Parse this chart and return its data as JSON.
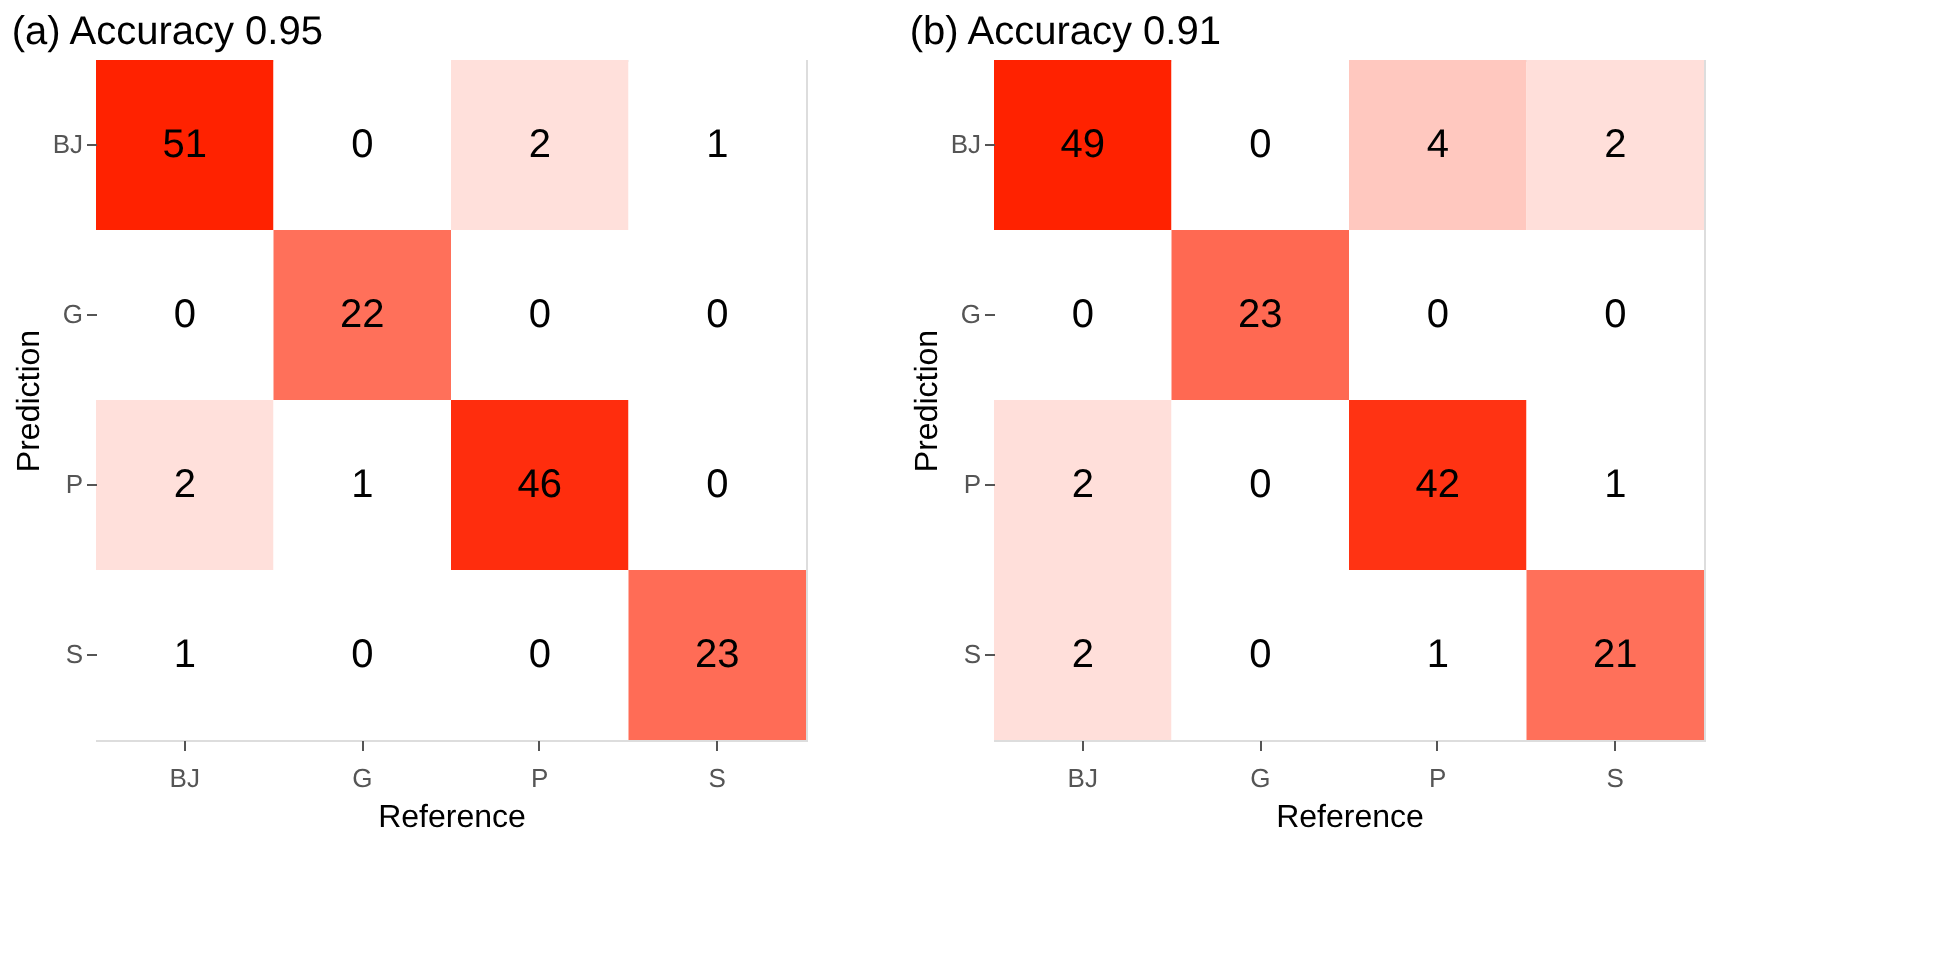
{
  "chart_data": [
    {
      "type": "heatmap",
      "title": "(a) Accuracy 0.95",
      "xlabel": "Reference",
      "ylabel": "Prediction",
      "categories": [
        "BJ",
        "G",
        "P",
        "S"
      ],
      "y_categories": [
        "BJ",
        "G",
        "P",
        "S"
      ],
      "data_labels": true,
      "cells": [
        [
          51,
          0,
          2,
          1
        ],
        [
          0,
          22,
          0,
          0
        ],
        [
          2,
          1,
          46,
          0
        ],
        [
          1,
          0,
          0,
          23
        ]
      ]
    },
    {
      "type": "heatmap",
      "title": "(b) Accuracy 0.91",
      "xlabel": "Reference",
      "ylabel": "Prediction",
      "categories": [
        "BJ",
        "G",
        "P",
        "S"
      ],
      "y_categories": [
        "BJ",
        "G",
        "P",
        "S"
      ],
      "data_labels": true,
      "cells": [
        [
          49,
          0,
          4,
          2
        ],
        [
          0,
          23,
          0,
          0
        ],
        [
          2,
          0,
          42,
          1
        ],
        [
          2,
          0,
          1,
          21
        ]
      ]
    }
  ]
}
